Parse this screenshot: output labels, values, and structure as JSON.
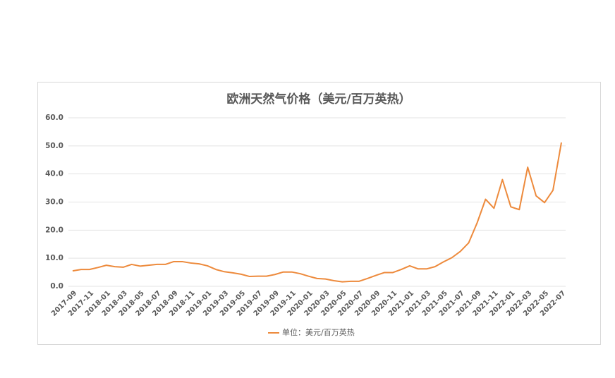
{
  "chart_data": {
    "type": "line",
    "title": "欧洲天然气价格（美元/百万英热）",
    "categories": [
      "2017-09",
      null,
      "2017-11",
      null,
      "2018-01",
      null,
      "2018-03",
      null,
      "2018-05",
      null,
      "2018-07",
      null,
      "2018-09",
      null,
      "2018-11",
      null,
      "2019-01",
      null,
      "2019-03",
      null,
      "2019-05",
      null,
      "2019-07",
      null,
      "2019-09",
      null,
      "2019-11",
      null,
      "2020-01",
      null,
      "2020-03",
      null,
      "2020-05",
      null,
      "2020-07",
      null,
      "2020-09",
      null,
      "2020-11",
      null,
      "2021-01",
      null,
      "2021-03",
      null,
      "2021-05",
      null,
      "2021-07",
      null,
      "2021-09",
      null,
      "2021-11",
      null,
      "2022-01",
      null,
      "2022-03",
      null,
      "2022-05",
      null,
      "2022-07"
    ],
    "series": [
      {
        "name": "单位：美元/百万英热",
        "color": "#ed8a3c",
        "values": [
          5.5,
          6.0,
          6.0,
          6.7,
          7.5,
          7.0,
          6.8,
          7.8,
          7.2,
          7.5,
          7.8,
          7.8,
          8.8,
          8.8,
          8.3,
          8.0,
          7.3,
          6.0,
          5.2,
          4.8,
          4.3,
          3.5,
          3.6,
          3.6,
          4.2,
          5.1,
          5.1,
          4.5,
          3.6,
          2.8,
          2.6,
          2.0,
          1.6,
          1.8,
          1.8,
          2.8,
          3.9,
          4.9,
          4.9,
          6.0,
          7.3,
          6.2,
          6.2,
          7.0,
          8.7,
          10.2,
          12.4,
          15.5,
          22.6,
          31.0,
          27.8,
          38.0,
          28.3,
          27.3,
          42.4,
          32.2,
          29.8,
          34.2,
          51.2
        ]
      }
    ],
    "ylim": [
      0,
      60
    ],
    "yticks": [
      {
        "value": 0,
        "label": "0.0"
      },
      {
        "value": 10,
        "label": "10.0"
      },
      {
        "value": 20,
        "label": "20.0"
      },
      {
        "value": 30,
        "label": "30.0"
      },
      {
        "value": 40,
        "label": "40.0"
      },
      {
        "value": 50,
        "label": "50.0"
      },
      {
        "value": 60,
        "label": "60.0"
      }
    ],
    "grid": true,
    "legend": "bottom"
  }
}
